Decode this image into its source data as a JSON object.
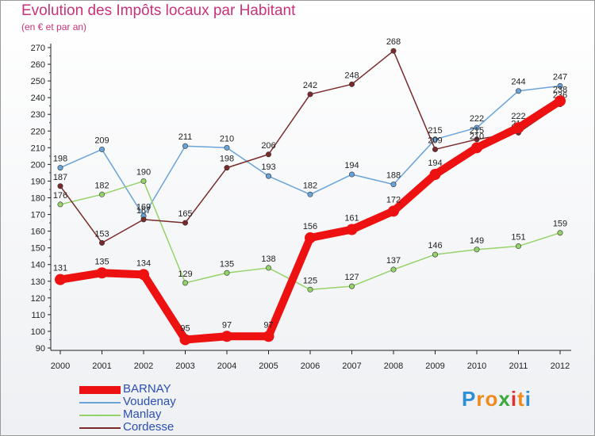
{
  "title": "Evolution des Impôts locaux par Habitant",
  "subtitle": "(en € et par an)",
  "brand": {
    "text": "Proxiti",
    "letters": [
      "P",
      "r",
      "o",
      "x",
      "i",
      "t",
      "i"
    ],
    "letter_colors": [
      "#2d8fd5",
      "#f08a1c",
      "#f08a1c",
      "#3aa83a",
      "#e0302f",
      "#f08a1c",
      "#2d8fd5"
    ]
  },
  "chart_data": {
    "type": "line",
    "title": "Evolution des Impôts locaux par Habitant",
    "subtitle": "(en € et par an)",
    "categories": [
      "2000",
      "2001",
      "2002",
      "2003",
      "2004",
      "2005",
      "2006",
      "2007",
      "2008",
      "2009",
      "2010",
      "2011",
      "2012"
    ],
    "ylim": [
      90,
      270
    ],
    "ytick_step": 10,
    "grid": false,
    "legend_position": "bottom-left",
    "series": [
      {
        "name": "BARNAY",
        "color": "#ee1111",
        "values": [
          131,
          135,
          134,
          95,
          97,
          97,
          156,
          161,
          172,
          194,
          210,
          222,
          238
        ],
        "emphasis": true
      },
      {
        "name": "Voudenay",
        "color": "#6aa3d8",
        "values": [
          198,
          209,
          169,
          211,
          210,
          193,
          182,
          194,
          188,
          215,
          222,
          244,
          247
        ]
      },
      {
        "name": "Manlay",
        "color": "#95d36a",
        "values": [
          176,
          182,
          190,
          129,
          135,
          138,
          125,
          127,
          137,
          146,
          149,
          151,
          159
        ]
      },
      {
        "name": "Cordesse",
        "color": "#7a2a2a",
        "values": [
          187,
          153,
          167,
          165,
          198,
          206,
          242,
          248,
          268,
          209,
          215,
          219,
          236
        ]
      }
    ]
  }
}
